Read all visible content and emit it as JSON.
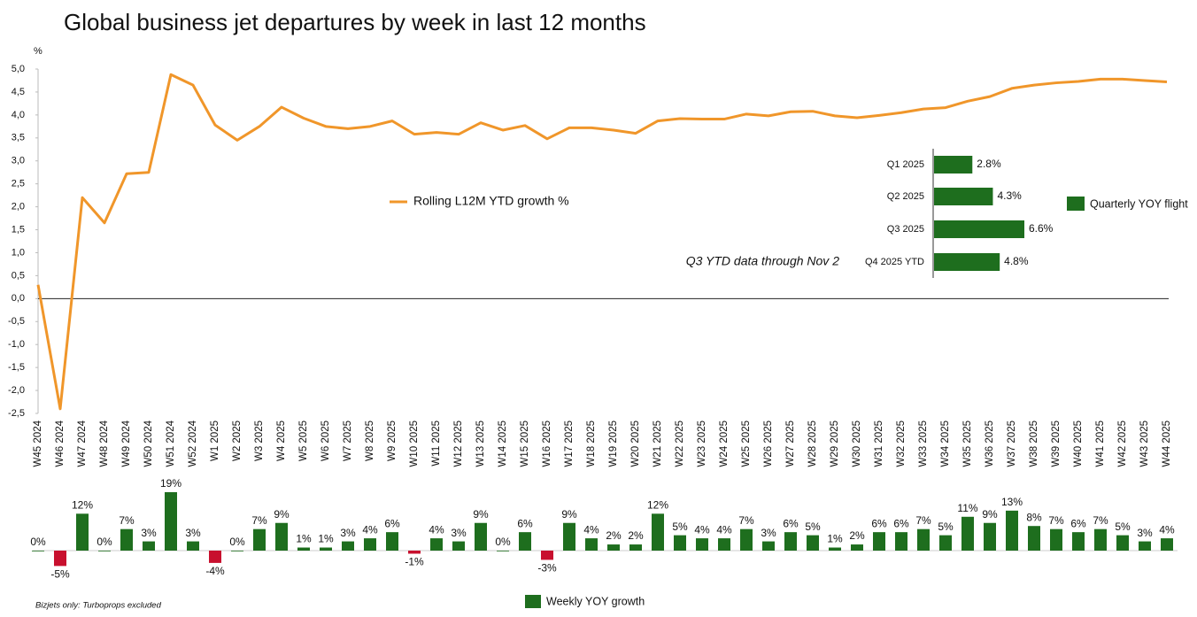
{
  "chart_data": [
    {
      "type": "line",
      "title": "Global business jet departures by week in last 12 months",
      "y_label": "%",
      "categories": [
        "W45 2024",
        "W46 2024",
        "W47 2024",
        "W48 2024",
        "W49 2024",
        "W50 2024",
        "W51 2024",
        "W52 2024",
        "W1 2025",
        "W2 2025",
        "W3 2025",
        "W4 2025",
        "W5 2025",
        "W6 2025",
        "W7 2025",
        "W8 2025",
        "W9 2025",
        "W10 2025",
        "W11 2025",
        "W12 2025",
        "W13 2025",
        "W14 2025",
        "W15 2025",
        "W16 2025",
        "W17 2025",
        "W18 2025",
        "W19 2025",
        "W20 2025",
        "W21 2025",
        "W22 2025",
        "W23 2025",
        "W24 2025",
        "W25 2025",
        "W26 2025",
        "W27 2025",
        "W28 2025",
        "W29 2025",
        "W30 2025",
        "W31 2025",
        "W32 2025",
        "W33 2025",
        "W34 2025",
        "W35 2025",
        "W36 2025",
        "W37 2025",
        "W38 2025",
        "W39 2025",
        "W40 2025",
        "W41 2025",
        "W42 2025",
        "W43 2025",
        "W44 2025"
      ],
      "series": [
        {
          "name": "Rolling L12M YTD growth %",
          "color": "#f0962a",
          "values": [
            0.3,
            -2.4,
            2.2,
            1.65,
            2.72,
            2.75,
            4.88,
            4.65,
            3.78,
            3.45,
            3.75,
            4.17,
            3.93,
            3.75,
            3.7,
            3.75,
            3.87,
            3.58,
            3.62,
            3.58,
            3.83,
            3.67,
            3.77,
            3.48,
            3.72,
            3.72,
            3.67,
            3.6,
            3.87,
            3.92,
            3.91,
            3.91,
            4.02,
            3.98,
            4.07,
            4.08,
            3.98,
            3.94,
            3.99,
            4.05,
            4.13,
            4.16,
            4.3,
            4.4,
            4.58,
            4.65,
            4.7,
            4.73,
            4.78,
            4.78,
            4.75,
            4.72
          ]
        }
      ],
      "ylim": [
        -2.5,
        5.0
      ],
      "yticks": [
        {
          "value": 5,
          "label": "5,0"
        },
        {
          "value": 4.5,
          "label": "4,5"
        },
        {
          "value": 4,
          "label": "4,0"
        },
        {
          "value": 3.5,
          "label": "3,5"
        },
        {
          "value": 3,
          "label": "3,0"
        },
        {
          "value": 2.5,
          "label": "2,5"
        },
        {
          "value": 2,
          "label": "2,0"
        },
        {
          "value": 1.5,
          "label": "1,5"
        },
        {
          "value": 1,
          "label": "1,0"
        },
        {
          "value": 0.5,
          "label": "0,5"
        },
        {
          "value": 0,
          "label": "0,0"
        },
        {
          "value": -0.5,
          "label": "-0,5"
        },
        {
          "value": -1,
          "label": "-1,0"
        },
        {
          "value": -1.5,
          "label": "-1,5"
        },
        {
          "value": -2,
          "label": "-2,0"
        },
        {
          "value": -2.5,
          "label": "-2,5"
        }
      ],
      "zero_line": true
    },
    {
      "type": "bar",
      "note": "Bizjets only: Turboprops excluded",
      "series": [
        {
          "name": "Weekly YOY growth",
          "color": "#1e6e1e",
          "negative_color": "#c8102e",
          "values": [
            0,
            -5,
            12,
            0,
            7,
            3,
            19,
            3,
            -4,
            0,
            7,
            9,
            1,
            1,
            3,
            4,
            6,
            -1,
            4,
            3,
            9,
            0,
            6,
            -3,
            9,
            4,
            2,
            2,
            12,
            5,
            4,
            4,
            7,
            3,
            6,
            5,
            1,
            2,
            6,
            6,
            7,
            5,
            11,
            9,
            13,
            8,
            7,
            6,
            7,
            5,
            3,
            4
          ],
          "value_labels": [
            "0%",
            "-5%",
            "12%",
            "0%",
            "7%",
            "3%",
            "19%",
            "3%",
            "-4%",
            "0%",
            "7%",
            "9%",
            "1%",
            "1%",
            "3%",
            "4%",
            "6%",
            "-1%",
            "4%",
            "3%",
            "9%",
            "0%",
            "6%",
            "-3%",
            "9%",
            "4%",
            "2%",
            "2%",
            "12%",
            "5%",
            "4%",
            "4%",
            "7%",
            "3%",
            "6%",
            "5%",
            "1%",
            "2%",
            "6%",
            "6%",
            "7%",
            "5%",
            "11%",
            "9%",
            "13%",
            "8%",
            "7%",
            "6%",
            "7%",
            "5%",
            "3%",
            "4%"
          ]
        }
      ]
    },
    {
      "type": "hbar",
      "annotation": "Q3 YTD data through Nov 2",
      "categories": [
        "Q1 2025",
        "Q2 2025",
        "Q3 2025",
        "Q4 2025 YTD"
      ],
      "series": [
        {
          "name": "Quarterly YOY flight",
          "color": "#1e6e1e",
          "values": [
            2.8,
            4.3,
            6.6,
            4.8
          ],
          "value_labels": [
            "2.8%",
            "4.3%",
            "6.6%",
            "4.8%"
          ]
        }
      ]
    }
  ]
}
